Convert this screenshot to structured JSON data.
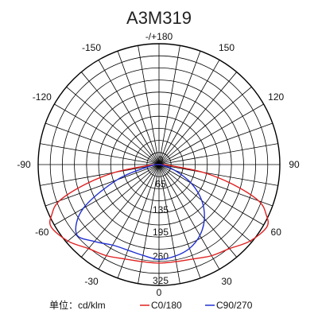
{
  "chart_data": {
    "type": "polar",
    "title": "A3M319",
    "unit_label": "单位：cd/klm",
    "radial_ticks": [
      "0",
      "65",
      "135",
      "195",
      "260",
      "325"
    ],
    "radial_max": 325,
    "angle_ticks": [
      {
        "angle": 180,
        "label": "-/+180"
      },
      {
        "angle": 150,
        "label": "150"
      },
      {
        "angle": 120,
        "label": "120"
      },
      {
        "angle": 90,
        "label": "90"
      },
      {
        "angle": 60,
        "label": "60"
      },
      {
        "angle": 30,
        "label": "30"
      },
      {
        "angle": 0,
        "label": "0"
      },
      {
        "angle": -30,
        "label": "-30"
      },
      {
        "angle": -60,
        "label": "-60"
      },
      {
        "angle": -90,
        "label": "-90"
      },
      {
        "angle": -120,
        "label": "-120"
      },
      {
        "angle": -150,
        "label": "-150"
      }
    ],
    "grid": true,
    "legend_position": "bottom",
    "series": [
      {
        "name": "C0/180",
        "color": "#e02020",
        "angles": [
          0,
          10,
          20,
          30,
          40,
          50,
          60,
          65,
          70,
          75,
          80,
          85,
          90
        ],
        "values": [
          265,
          265,
          270,
          283,
          295,
          320,
          335,
          318,
          285,
          205,
          120,
          30,
          0
        ]
      },
      {
        "name": "C90/270",
        "color": "#2030d0",
        "angles": [
          -90,
          -80,
          -70,
          -60,
          -50,
          -40,
          -30,
          -20,
          -10,
          0,
          10,
          20,
          30,
          40,
          50,
          60,
          70,
          80,
          90
        ],
        "values": [
          0,
          25,
          120,
          235,
          290,
          270,
          250,
          245,
          248,
          255,
          250,
          240,
          220,
          190,
          150,
          100,
          45,
          10,
          0
        ]
      }
    ]
  }
}
